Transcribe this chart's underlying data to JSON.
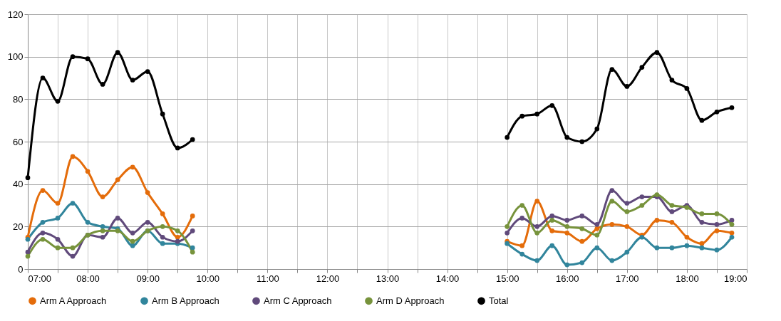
{
  "chart_data": {
    "type": "line",
    "x": [
      7,
      7.25,
      7.5,
      7.75,
      8,
      8.25,
      8.5,
      8.75,
      9,
      9.25,
      9.5,
      9.75,
      10,
      15,
      15.25,
      15.5,
      15.75,
      16,
      16.25,
      16.5,
      16.75,
      17,
      17.25,
      17.5,
      17.75,
      18,
      18.25,
      18.5,
      18.75
    ],
    "series": [
      {
        "name": "Arm A Approach",
        "color": "#e46c0a",
        "values": [
          15,
          37,
          31,
          53,
          46,
          34,
          42,
          48,
          36,
          26,
          15,
          25,
          null,
          13,
          11,
          32,
          18,
          17,
          13,
          19,
          21,
          20,
          16,
          23,
          22,
          15,
          12,
          18,
          17
        ]
      },
      {
        "name": "Arm B Approach",
        "color": "#31859c",
        "values": [
          14,
          22,
          24,
          31,
          22,
          20,
          19,
          11,
          18,
          12,
          12,
          10,
          null,
          12,
          7,
          4,
          11,
          2,
          3,
          10,
          4,
          8,
          15,
          10,
          10,
          11,
          10,
          9,
          15
        ]
      },
      {
        "name": "Arm C Approach",
        "color": "#604a7b",
        "values": [
          8,
          17,
          14,
          6,
          16,
          15,
          24,
          17,
          22,
          15,
          13,
          18,
          null,
          17,
          24,
          20,
          25,
          23,
          25,
          21,
          37,
          31,
          34,
          34,
          27,
          30,
          22,
          21,
          23
        ]
      },
      {
        "name": "Arm D Approach",
        "color": "#77933c",
        "values": [
          6,
          14,
          10,
          10,
          16,
          18,
          18,
          13,
          18,
          20,
          18,
          8,
          null,
          20,
          30,
          17,
          23,
          20,
          19,
          16,
          32,
          27,
          30,
          35,
          30,
          29,
          26,
          26,
          21
        ]
      },
      {
        "name": "Total",
        "color": "#000000",
        "values": [
          43,
          90,
          79,
          100,
          99,
          87,
          102,
          89,
          93,
          73,
          57,
          61,
          null,
          62,
          72,
          73,
          77,
          62,
          60,
          66,
          94,
          86,
          95,
          102,
          89,
          85,
          70,
          74,
          76
        ]
      }
    ],
    "xlim": [
      7,
      19
    ],
    "xticks": [
      {
        "value": 7,
        "label": "07:00"
      },
      {
        "value": 7.5,
        "label": null
      },
      {
        "value": 8,
        "label": "08:00"
      },
      {
        "value": 8.5,
        "label": null
      },
      {
        "value": 9,
        "label": "09:00"
      },
      {
        "value": 9.5,
        "label": null
      },
      {
        "value": 10,
        "label": "10:00"
      },
      {
        "value": 10.5,
        "label": null
      },
      {
        "value": 11,
        "label": "11:00"
      },
      {
        "value": 11.5,
        "label": null
      },
      {
        "value": 12,
        "label": "12:00"
      },
      {
        "value": 12.5,
        "label": null
      },
      {
        "value": 13,
        "label": "13:00"
      },
      {
        "value": 13.5,
        "label": null
      },
      {
        "value": 14,
        "label": "14:00"
      },
      {
        "value": 14.5,
        "label": null
      },
      {
        "value": 15,
        "label": "15:00"
      },
      {
        "value": 15.5,
        "label": null
      },
      {
        "value": 16,
        "label": "16:00"
      },
      {
        "value": 16.5,
        "label": null
      },
      {
        "value": 17,
        "label": "17:00"
      },
      {
        "value": 17.5,
        "label": null
      },
      {
        "value": 18,
        "label": "18:00"
      },
      {
        "value": 18.5,
        "label": null
      },
      {
        "value": 19,
        "label": "19:00"
      }
    ],
    "ylim": [
      0,
      120
    ],
    "yticks": [
      0,
      20,
      40,
      60,
      80,
      100,
      120
    ],
    "grid": true,
    "legend": "bottom",
    "marker": "circle",
    "line_style": "solid"
  }
}
